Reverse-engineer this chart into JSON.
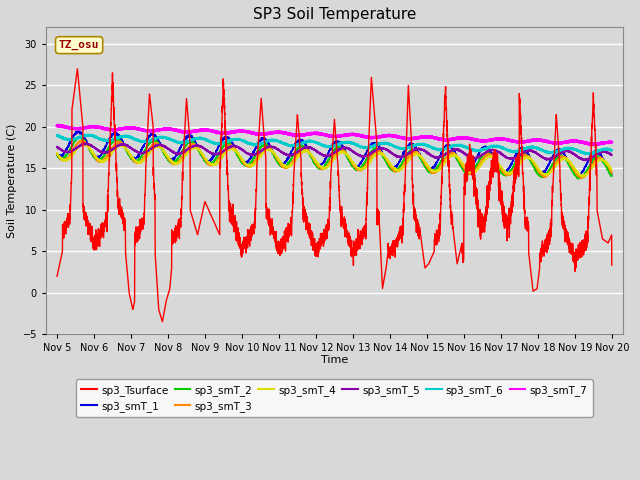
{
  "title": "SP3 Soil Temperature",
  "ylabel": "Soil Temperature (C)",
  "xlabel": "Time",
  "xlim_days": [
    4.7,
    20.3
  ],
  "ylim": [
    -5,
    32
  ],
  "yticks": [
    -5,
    0,
    5,
    10,
    15,
    20,
    25,
    30
  ],
  "xtick_labels": [
    "Nov 5",
    "Nov 6",
    "Nov 7",
    "Nov 8",
    "Nov 9",
    "Nov 10",
    "Nov 11",
    "Nov 12",
    "Nov 13",
    "Nov 14",
    "Nov 15",
    "Nov 16",
    "Nov 17",
    "Nov 18",
    "Nov 19",
    "Nov 20"
  ],
  "xtick_days": [
    5,
    6,
    7,
    8,
    9,
    10,
    11,
    12,
    13,
    14,
    15,
    16,
    17,
    18,
    19,
    20
  ],
  "bg_color": "#d8d8d8",
  "plot_bg_color": "#d8d8d8",
  "annotation_text": "TZ_osu",
  "annotation_color": "#990000",
  "annotation_bg": "#ffffcc",
  "annotation_border": "#aa8800",
  "series_colors": {
    "sp3_Tsurface": "#ff0000",
    "sp3_smT_1": "#0000dd",
    "sp3_smT_2": "#00cc00",
    "sp3_smT_3": "#ff8800",
    "sp3_smT_4": "#dddd00",
    "sp3_smT_5": "#8800aa",
    "sp3_smT_6": "#00cccc",
    "sp3_smT_7": "#ff00ff"
  },
  "legend_entries": [
    "sp3_Tsurface",
    "sp3_smT_1",
    "sp3_smT_2",
    "sp3_smT_3",
    "sp3_smT_4",
    "sp3_smT_5",
    "sp3_smT_6",
    "sp3_smT_7"
  ],
  "figsize": [
    6.4,
    4.8
  ],
  "dpi": 100
}
